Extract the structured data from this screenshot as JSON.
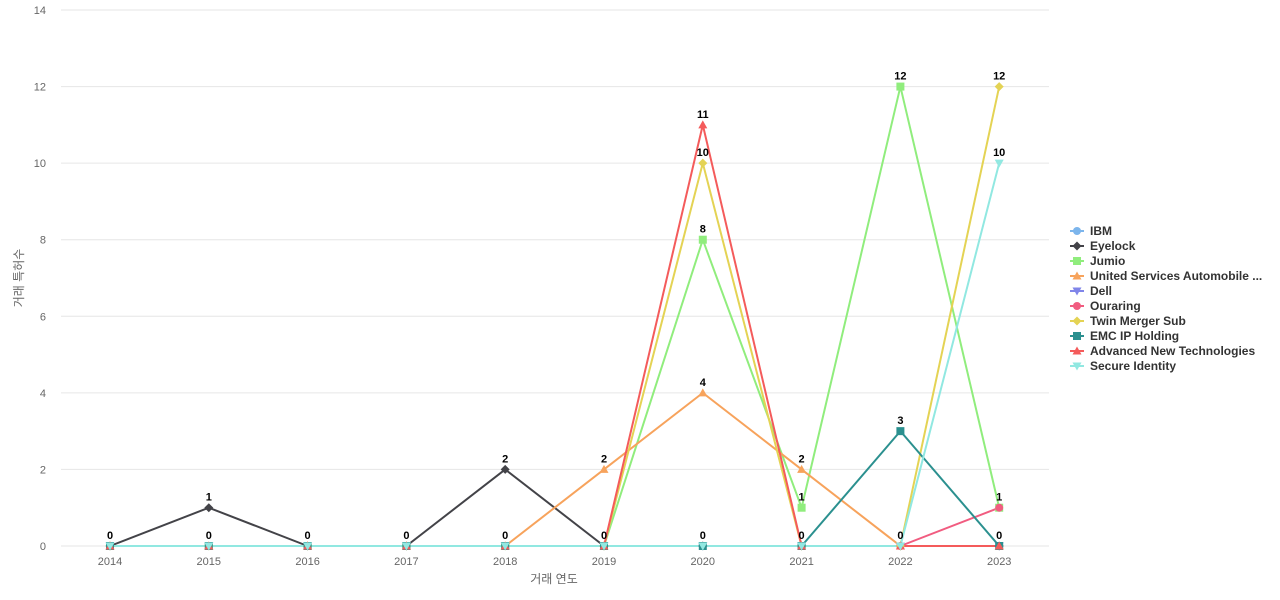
{
  "chart_data": {
    "type": "line",
    "title": "",
    "xlabel": "거래 연도",
    "ylabel": "거래 특허수",
    "ylim": [
      0,
      14
    ],
    "yticks": [
      0,
      2,
      4,
      6,
      8,
      10,
      12,
      14
    ],
    "grid": true,
    "legend_position": "right",
    "categories": [
      "2014",
      "2015",
      "2016",
      "2017",
      "2018",
      "2019",
      "2020",
      "2021",
      "2022",
      "2023"
    ],
    "series": [
      {
        "name": "IBM",
        "color": "#7cb5ec",
        "marker": "circle",
        "values": [
          0,
          0,
          0,
          0,
          0,
          0,
          0,
          0,
          0,
          0
        ]
      },
      {
        "name": "Eyelock",
        "color": "#434348",
        "marker": "diamond",
        "values": [
          0,
          1,
          0,
          0,
          2,
          0,
          0,
          0,
          0,
          0
        ]
      },
      {
        "name": "Jumio",
        "color": "#90ed7d",
        "marker": "square",
        "values": [
          0,
          0,
          0,
          0,
          0,
          0,
          8,
          1,
          12,
          1
        ]
      },
      {
        "name": "United Services Automobile ...",
        "color": "#f7a35c",
        "marker": "triangle",
        "values": [
          0,
          0,
          0,
          0,
          0,
          2,
          4,
          2,
          0,
          0
        ]
      },
      {
        "name": "Dell",
        "color": "#8085e9",
        "marker": "triangle-down",
        "values": [
          0,
          0,
          0,
          0,
          0,
          0,
          0,
          0,
          0,
          0
        ]
      },
      {
        "name": "Ouraring",
        "color": "#f15c80",
        "marker": "circle",
        "values": [
          0,
          0,
          0,
          0,
          0,
          0,
          0,
          0,
          0,
          1
        ]
      },
      {
        "name": "Twin Merger Sub",
        "color": "#e4d354",
        "marker": "diamond",
        "values": [
          0,
          0,
          0,
          0,
          0,
          0,
          10,
          0,
          0,
          12
        ]
      },
      {
        "name": "EMC IP Holding",
        "color": "#2b908f",
        "marker": "square",
        "values": [
          0,
          0,
          0,
          0,
          0,
          0,
          0,
          0,
          3,
          0
        ]
      },
      {
        "name": "Advanced New Technologies",
        "color": "#f45b5b",
        "marker": "triangle",
        "values": [
          0,
          0,
          0,
          0,
          0,
          0,
          11,
          0,
          0,
          0
        ]
      },
      {
        "name": "Secure Identity",
        "color": "#91e8e1",
        "marker": "triangle-down",
        "values": [
          0,
          0,
          0,
          0,
          0,
          0,
          0,
          0,
          0,
          10
        ]
      }
    ],
    "data_labels": [
      {
        "series": "Eyelock",
        "index": 0,
        "text": "0"
      },
      {
        "series": "Eyelock",
        "index": 1,
        "text": "1"
      },
      {
        "series": "IBM",
        "index": 1,
        "text": "0"
      },
      {
        "series": "Eyelock",
        "index": 2,
        "text": "0"
      },
      {
        "series": "Eyelock",
        "index": 3,
        "text": "0"
      },
      {
        "series": "Eyelock",
        "index": 4,
        "text": "2"
      },
      {
        "series": "IBM",
        "index": 4,
        "text": "0"
      },
      {
        "series": "United Services Automobile ...",
        "index": 5,
        "text": "2"
      },
      {
        "series": "Eyelock",
        "index": 5,
        "text": "0"
      },
      {
        "series": "Advanced New Technologies",
        "index": 6,
        "text": "11"
      },
      {
        "series": "Twin Merger Sub",
        "index": 6,
        "text": "10"
      },
      {
        "series": "Jumio",
        "index": 6,
        "text": "8"
      },
      {
        "series": "United Services Automobile ...",
        "index": 6,
        "text": "4"
      },
      {
        "series": "IBM",
        "index": 6,
        "text": "0"
      },
      {
        "series": "United Services Automobile ...",
        "index": 7,
        "text": "2"
      },
      {
        "series": "Jumio",
        "index": 7,
        "text": "1"
      },
      {
        "series": "Eyelock",
        "index": 7,
        "text": "0"
      },
      {
        "series": "Jumio",
        "index": 8,
        "text": "12"
      },
      {
        "series": "EMC IP Holding",
        "index": 8,
        "text": "3"
      },
      {
        "series": "Eyelock",
        "index": 8,
        "text": "0"
      },
      {
        "series": "Twin Merger Sub",
        "index": 9,
        "text": "12"
      },
      {
        "series": "Secure Identity",
        "index": 9,
        "text": "10"
      },
      {
        "series": "Ouraring",
        "index": 9,
        "text": "1"
      },
      {
        "series": "Eyelock",
        "index": 9,
        "text": "0"
      }
    ]
  }
}
